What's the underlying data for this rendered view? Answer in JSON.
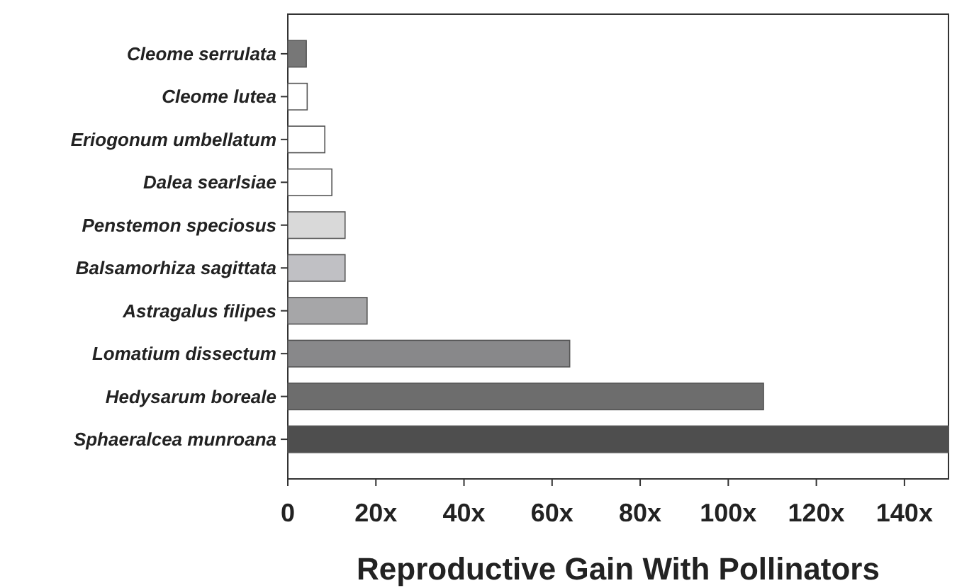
{
  "chart_data": {
    "type": "bar",
    "orientation": "horizontal",
    "xlabel": "Reproductive Gain With Pollinators",
    "categories": [
      "Cleome serrulata",
      "Cleome lutea",
      "Eriogonum umbellatum",
      "Dalea searlsiae",
      "Penstemon speciosus",
      "Balsamorhiza sagittata",
      "Astragalus filipes",
      "Lomatium dissectum",
      "Hedysarum boreale",
      "Sphaeralcea munroana"
    ],
    "values": [
      4.2,
      4.4,
      8.4,
      10,
      13,
      13,
      18,
      64,
      108,
      150
    ],
    "colors": [
      "#777777",
      "#ffffff",
      "#ffffff",
      "#ffffff",
      "#d9d9d9",
      "#c0c0c4",
      "#a6a6a8",
      "#88888a",
      "#6d6d6d",
      "#4e4e4e"
    ],
    "xlim": [
      0,
      150
    ],
    "xticks": [
      0,
      {
        "value": 20,
        "label": "20x"
      },
      {
        "value": 40,
        "label": "40x"
      },
      {
        "value": 60,
        "label": "60x"
      },
      {
        "value": 80,
        "label": "80x"
      },
      {
        "value": 100,
        "label": "100x"
      },
      {
        "value": 120,
        "label": "120x"
      },
      {
        "value": 140,
        "label": "140x"
      }
    ],
    "grid": false
  }
}
